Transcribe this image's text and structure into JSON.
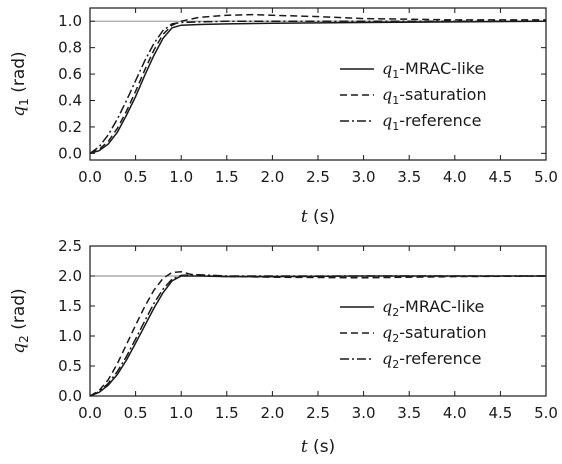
{
  "chart_data": [
    {
      "type": "line",
      "xlabel_symbol": "t",
      "xlabel_unit": " (s)",
      "ylabel_symbol": "q",
      "ylabel_sub": "1",
      "ylabel_unit": " (rad)",
      "xlim": [
        0,
        5
      ],
      "ylim": [
        -0.05,
        1.1
      ],
      "xticks": [
        "0.0",
        "0.5",
        "1.0",
        "1.5",
        "2.0",
        "2.5",
        "3.0",
        "3.5",
        "4.0",
        "4.5",
        "5.0"
      ],
      "yticks": [
        "0.0",
        "0.2",
        "0.4",
        "0.6",
        "0.8",
        "1.0"
      ],
      "reference_level": 1.0,
      "legend_position": "right",
      "series": [
        {
          "name": "q1-MRAC-like",
          "legend_symbol": "q",
          "legend_sub": "1",
          "legend_text": "-MRAC-like",
          "style": "solid",
          "x": [
            0,
            0.1,
            0.2,
            0.3,
            0.4,
            0.5,
            0.6,
            0.7,
            0.8,
            0.9,
            1.0,
            1.2,
            1.5,
            2.0,
            3.0,
            4.0,
            5.0
          ],
          "y": [
            0.0,
            0.02,
            0.07,
            0.16,
            0.29,
            0.43,
            0.59,
            0.74,
            0.87,
            0.95,
            0.97,
            0.975,
            0.98,
            0.985,
            0.99,
            0.995,
            1.0
          ]
        },
        {
          "name": "q1-saturation",
          "legend_symbol": "q",
          "legend_sub": "1",
          "legend_text": "-saturation",
          "style": "dashed",
          "x": [
            0,
            0.1,
            0.2,
            0.3,
            0.4,
            0.5,
            0.6,
            0.7,
            0.8,
            0.9,
            1.0,
            1.2,
            1.5,
            1.8,
            2.0,
            2.5,
            3.0,
            3.5,
            4.0,
            5.0
          ],
          "y": [
            0.0,
            0.03,
            0.09,
            0.19,
            0.32,
            0.47,
            0.63,
            0.78,
            0.9,
            0.97,
            1.0,
            1.03,
            1.045,
            1.05,
            1.045,
            1.035,
            1.02,
            1.015,
            1.01,
            1.01
          ]
        },
        {
          "name": "q1-reference",
          "legend_symbol": "q",
          "legend_sub": "1",
          "legend_text": "-reference",
          "style": "dashdot",
          "x": [
            0,
            0.1,
            0.2,
            0.3,
            0.4,
            0.5,
            0.6,
            0.7,
            0.8,
            0.9,
            1.0,
            1.2,
            1.5,
            2.0,
            3.0,
            5.0
          ],
          "y": [
            0.0,
            0.05,
            0.14,
            0.26,
            0.4,
            0.55,
            0.7,
            0.83,
            0.93,
            0.98,
            0.99,
            0.995,
            1.0,
            1.0,
            1.0,
            1.0
          ]
        }
      ]
    },
    {
      "type": "line",
      "xlabel_symbol": "t",
      "xlabel_unit": " (s)",
      "ylabel_symbol": "q",
      "ylabel_sub": "2",
      "ylabel_unit": " (rad)",
      "xlim": [
        0,
        5
      ],
      "ylim": [
        0,
        2.5
      ],
      "xticks": [
        "0.0",
        "0.5",
        "1.0",
        "1.5",
        "2.0",
        "2.5",
        "3.0",
        "3.5",
        "4.0",
        "4.5",
        "5.0"
      ],
      "yticks": [
        "0.0",
        "0.5",
        "1.0",
        "1.5",
        "2.0",
        "2.5"
      ],
      "reference_level": 2.0,
      "legend_position": "right",
      "series": [
        {
          "name": "q2-MRAC-like",
          "legend_symbol": "q",
          "legend_sub": "2",
          "legend_text": "-MRAC-like",
          "style": "solid",
          "x": [
            0,
            0.1,
            0.2,
            0.3,
            0.4,
            0.5,
            0.6,
            0.7,
            0.8,
            0.9,
            1.0,
            1.2,
            1.5,
            2.0,
            3.0,
            5.0
          ],
          "y": [
            0.0,
            0.06,
            0.18,
            0.36,
            0.6,
            0.88,
            1.17,
            1.46,
            1.72,
            1.92,
            2.0,
            2.0,
            1.99,
            1.99,
            2.0,
            2.0
          ]
        },
        {
          "name": "q2-saturation",
          "legend_symbol": "q",
          "legend_sub": "2",
          "legend_text": "-saturation",
          "style": "dashed",
          "x": [
            0,
            0.1,
            0.2,
            0.3,
            0.4,
            0.5,
            0.6,
            0.7,
            0.8,
            0.9,
            1.0,
            1.1,
            1.3,
            1.6,
            2.0,
            3.0,
            4.0,
            5.0
          ],
          "y": [
            0.0,
            0.09,
            0.27,
            0.54,
            0.86,
            1.18,
            1.49,
            1.76,
            1.96,
            2.06,
            2.07,
            2.03,
            2.0,
            1.99,
            1.98,
            1.97,
            1.99,
            2.0
          ]
        },
        {
          "name": "q2-reference",
          "legend_symbol": "q",
          "legend_sub": "2",
          "legend_text": "-reference",
          "style": "dashdot",
          "x": [
            0,
            0.1,
            0.2,
            0.3,
            0.4,
            0.5,
            0.6,
            0.7,
            0.8,
            0.9,
            1.0,
            1.2,
            1.5,
            2.0,
            3.0,
            5.0
          ],
          "y": [
            0.0,
            0.07,
            0.21,
            0.41,
            0.66,
            0.95,
            1.25,
            1.54,
            1.78,
            1.95,
            2.01,
            2.02,
            2.0,
            2.0,
            2.0,
            2.0
          ]
        }
      ]
    }
  ]
}
